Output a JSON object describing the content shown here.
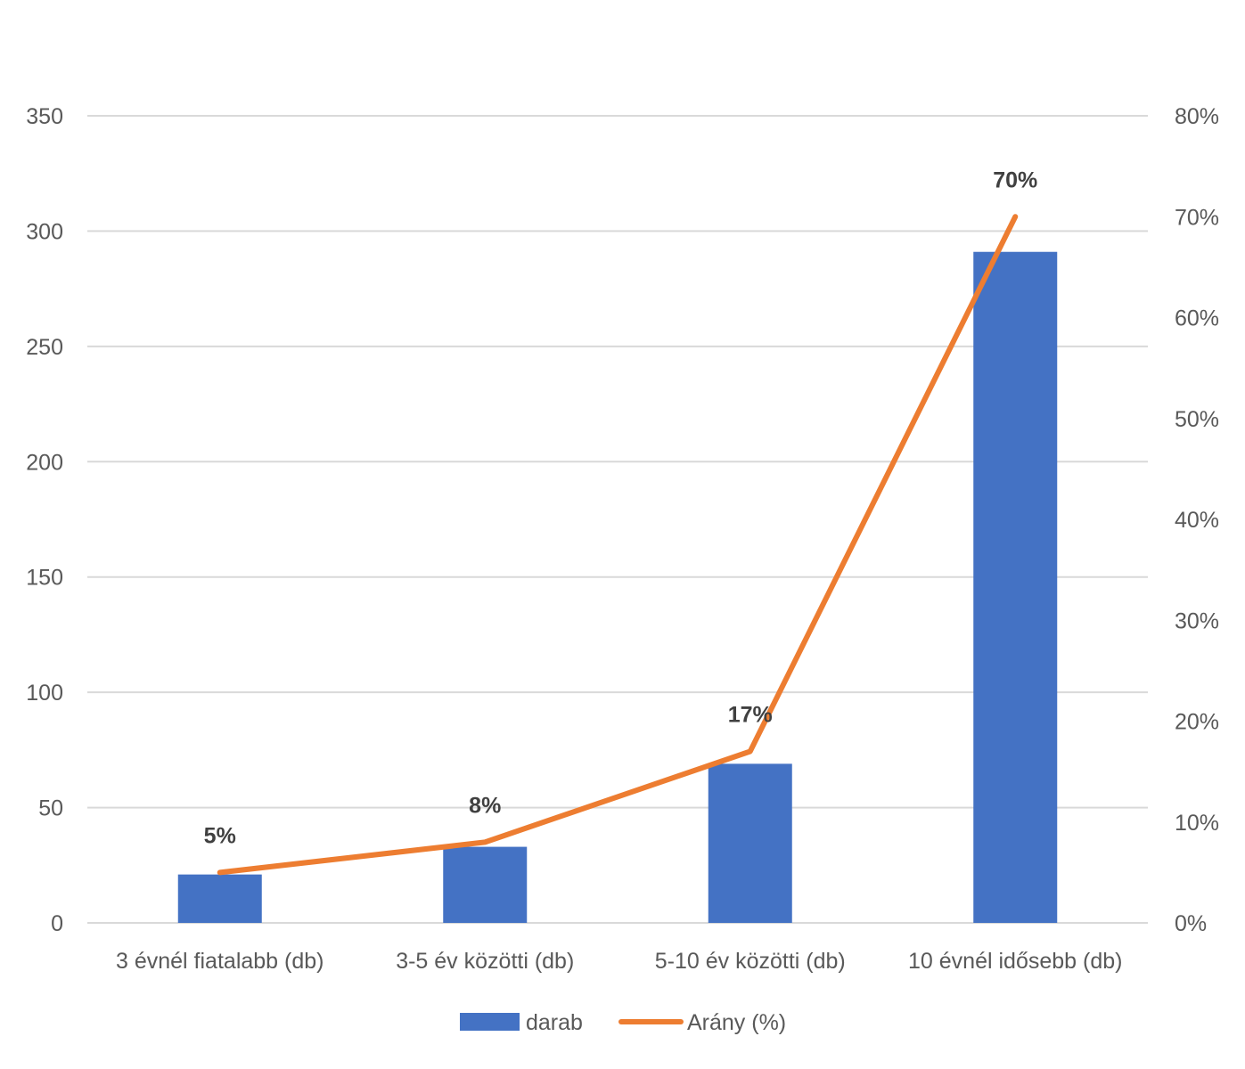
{
  "chart_data": {
    "type": "bar",
    "categories": [
      "3 évnél fiatalabb (db)",
      "3-5 év közötti (db)",
      "5-10 év közötti (db)",
      "10 évnél idősebb (db)"
    ],
    "series": [
      {
        "name": "darab",
        "type": "bar",
        "axis": "left",
        "values": [
          21,
          33,
          69,
          291
        ],
        "color": "#4472C4"
      },
      {
        "name": "Arány (%)",
        "type": "line",
        "axis": "right",
        "values": [
          5,
          8,
          17,
          70
        ],
        "data_labels": [
          "5%",
          "8%",
          "17%",
          "70%"
        ],
        "color": "#ED7D31"
      }
    ],
    "y_left": {
      "ylim": [
        0,
        350
      ],
      "ticks": [
        "0",
        "50",
        "100",
        "150",
        "200",
        "250",
        "300",
        "350"
      ]
    },
    "y_right": {
      "ylim": [
        0,
        80
      ],
      "ticks": [
        "0%",
        "10%",
        "20%",
        "30%",
        "40%",
        "50%",
        "60%",
        "70%",
        "80%"
      ]
    },
    "grid": true,
    "legend": {
      "position": "bottom",
      "entries": [
        "darab",
        "Arány (%)"
      ]
    }
  }
}
